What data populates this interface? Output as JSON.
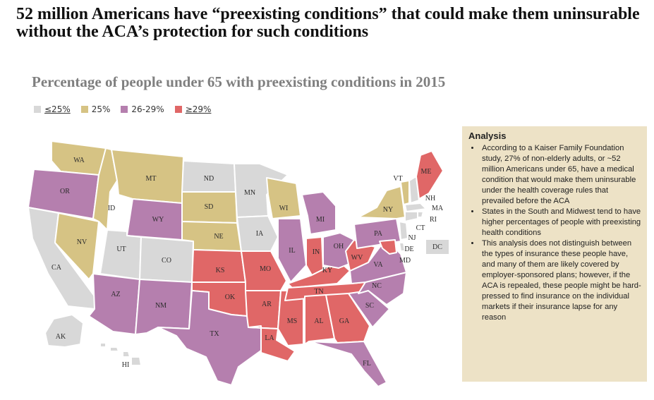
{
  "header": {
    "title": "52 million Americans have “preexisting conditions” that could make them uninsurable without the ACA’s protection for such conditions",
    "subtitle": "Percentage of people under 65 with preexisting conditions in 2015"
  },
  "legend": {
    "items": [
      {
        "label": "≤25%",
        "color": "#d8d8d8"
      },
      {
        "label": "25%",
        "color": "#d6c384"
      },
      {
        "label": "26-29%",
        "color": "#b57fae"
      },
      {
        "label": "≥29%",
        "color": "#e06767"
      }
    ]
  },
  "map": {
    "categories": {
      "low": "≤25%",
      "mid": "25%",
      "high": "26-29%",
      "top": "≥29%"
    },
    "states": {
      "WA": "mid",
      "OR": "high",
      "CA": "low",
      "NV": "mid",
      "ID": "mid",
      "MT": "mid",
      "WY": "high",
      "UT": "low",
      "CO": "low",
      "AZ": "high",
      "NM": "high",
      "ND": "low",
      "SD": "mid",
      "NE": "mid",
      "KS": "top",
      "OK": "top",
      "TX": "high",
      "MN": "low",
      "IA": "low",
      "MO": "top",
      "AR": "top",
      "LA": "top",
      "WI": "mid",
      "IL": "high",
      "MS": "top",
      "MI": "high",
      "IN": "top",
      "KY": "top",
      "TN": "top",
      "AL": "top",
      "OH": "high",
      "GA": "top",
      "FL": "high",
      "SC": "high",
      "NC": "high",
      "VA": "high",
      "WV": "top",
      "PA": "high",
      "NY": "mid",
      "VT": "mid",
      "NH": "low",
      "ME": "top",
      "MA": "low",
      "RI": "low",
      "CT": "low",
      "NJ": "low",
      "DE": "low",
      "MD": "top",
      "AK": "low",
      "HI": "low",
      "DC": "low"
    },
    "dc_label": "DC"
  },
  "analysis": {
    "title": "Analysis",
    "bullets": [
      "According to a Kaiser Family Foundation study, 27% of non-elderly adults, or ~52 million Americans under 65, have a medical condition that would make them uninsurable under the health coverage rules that prevailed before the ACA",
      "States in the South and Midwest tend to have higher percentages of people with preexisting health conditions",
      "This analysis does not distinguish between the types of insurance these people have, and many of them are likely covered by employer-sponsored plans; however, if the ACA is repealed, these people might be hard-pressed to find insurance on the individual markets if their insurance lapse for any reason"
    ]
  }
}
